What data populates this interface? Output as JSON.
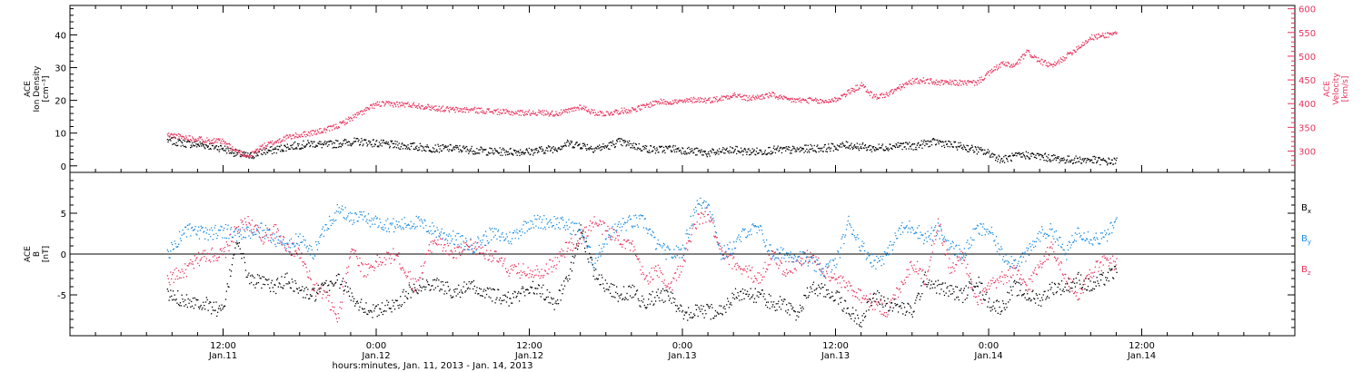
{
  "colors": {
    "black": "#000000",
    "pink": "#e8345e",
    "blue": "#1a8be0"
  },
  "footer": {
    "xlabel": "hours:minutes, Jan. 11, 2013 - Jan. 14, 2013"
  },
  "chart_data": [
    {
      "type": "scatter",
      "panel": "top",
      "ylabel_left": [
        "ACE",
        "Ion Density",
        "[cm⁻³]"
      ],
      "ylabel_right": [
        "ACE",
        "Velocity",
        "[km/s]"
      ],
      "x_range_hours": [
        0,
        96
      ],
      "x_unit": "hours since Jan. 11 00:00",
      "yaxis_left": {
        "range": [
          -2,
          49
        ],
        "ticks": [
          0,
          10,
          20,
          30,
          40
        ],
        "tick_labels": [
          "0",
          "10",
          "20",
          "30",
          "40"
        ]
      },
      "yaxis_right": {
        "range": [
          255,
          607
        ],
        "ticks": [
          300,
          350,
          400,
          450,
          500,
          550,
          600
        ],
        "tick_labels": [
          "300",
          "350",
          "400",
          "450",
          "500",
          "550",
          "600"
        ]
      },
      "series": [
        {
          "axis": "left",
          "color": "#000000",
          "x": [
            7.6,
            9,
            10.5,
            12,
            13,
            14,
            15,
            16,
            17,
            18,
            19,
            20,
            21,
            22,
            23,
            24,
            25.5,
            27,
            28.5,
            30,
            31.5,
            33,
            34.5,
            36,
            37,
            38,
            39,
            40,
            41,
            42,
            43,
            44,
            45,
            46,
            47,
            48,
            49,
            50,
            51,
            52,
            53,
            54,
            55,
            56,
            57,
            58,
            59,
            60,
            61,
            62,
            63,
            64,
            65,
            66,
            67,
            68,
            69,
            70,
            71,
            72,
            73,
            74,
            75,
            76,
            77,
            78,
            79,
            80,
            81,
            82
          ],
          "y": [
            8,
            7,
            6.5,
            5.5,
            4,
            3,
            4.5,
            5,
            6,
            6.5,
            7,
            6.5,
            7,
            7.5,
            7.5,
            7,
            6.5,
            6,
            5.5,
            5.5,
            5,
            4.5,
            4.5,
            4.5,
            5,
            5.5,
            7,
            6.5,
            5.5,
            6,
            7.5,
            6.5,
            5.5,
            5,
            5.5,
            5,
            4.5,
            4,
            4.5,
            5,
            4.5,
            4.5,
            5,
            5,
            5,
            5.5,
            5.5,
            6,
            6.5,
            6,
            5.5,
            6,
            6.5,
            6,
            7,
            7.5,
            6.5,
            6,
            5,
            4,
            2,
            3,
            3.5,
            3,
            2.5,
            2,
            2,
            2,
            1.5,
            1.5
          ]
        },
        {
          "axis": "right",
          "color": "#e8345e",
          "x": [
            7.6,
            9,
            10.5,
            12,
            13,
            14,
            15,
            16,
            17,
            18,
            19,
            20,
            21,
            22,
            23,
            24,
            25.5,
            27,
            28.5,
            30,
            31.5,
            33,
            34.5,
            36,
            37,
            38,
            39,
            40,
            41,
            42,
            43,
            44,
            45,
            46,
            47,
            48,
            49,
            50,
            51,
            52,
            53,
            54,
            55,
            56,
            57,
            58,
            59,
            60,
            61,
            62,
            63,
            64,
            65,
            66,
            67,
            68,
            69,
            70,
            71,
            72,
            73,
            74,
            75,
            76,
            77,
            78,
            79,
            80,
            81,
            82
          ],
          "y": [
            335,
            330,
            325,
            320,
            300,
            290,
            310,
            320,
            330,
            335,
            340,
            345,
            355,
            370,
            385,
            400,
            400,
            398,
            392,
            388,
            388,
            385,
            382,
            382,
            382,
            380,
            385,
            395,
            382,
            380,
            385,
            388,
            395,
            405,
            405,
            405,
            410,
            408,
            412,
            420,
            412,
            415,
            420,
            410,
            408,
            408,
            405,
            410,
            425,
            440,
            415,
            420,
            435,
            448,
            450,
            445,
            445,
            445,
            445,
            465,
            485,
            480,
            510,
            490,
            480,
            500,
            520,
            540,
            545,
            550
          ]
        }
      ]
    },
    {
      "type": "scatter",
      "panel": "bottom",
      "ylabel_left": [
        "ACE",
        "B",
        "[nT]"
      ],
      "x_range_hours": [
        0,
        96
      ],
      "x_unit": "hours since Jan. 11 00:00",
      "yaxis_left": {
        "range": [
          -10,
          10
        ],
        "ticks": [
          -5,
          0,
          5
        ],
        "tick_labels": [
          "-5",
          "0",
          "5"
        ]
      },
      "zero_line": true,
      "legend": {
        "placement": "right",
        "entries": [
          {
            "base": "B",
            "sub": "x",
            "color": "#000000"
          },
          {
            "base": "B",
            "sub": "y",
            "color": "#1a8be0"
          },
          {
            "base": "B",
            "sub": "z",
            "color": "#e8345e"
          }
        ]
      },
      "series": [
        {
          "name": "Bx",
          "color": "#000000",
          "x": [
            7.6,
            9,
            10.5,
            12,
            13,
            14,
            15,
            16,
            17,
            18,
            19,
            20,
            21,
            22,
            23,
            24,
            25.5,
            27,
            28.5,
            30,
            31.5,
            33,
            34.5,
            36,
            37,
            38,
            39,
            40,
            41,
            42,
            43,
            44,
            45,
            46,
            47,
            48,
            49,
            50,
            51,
            52,
            53,
            54,
            55,
            56,
            57,
            58,
            59,
            60,
            61,
            62,
            63,
            64,
            65,
            66,
            67,
            68,
            69,
            70,
            71,
            72,
            73,
            74,
            75,
            76,
            77,
            78,
            79,
            80,
            81,
            82
          ],
          "y": [
            -5,
            -5.5,
            -6,
            -7,
            2,
            -3,
            -3.5,
            -4,
            -3,
            -4.5,
            -5,
            -4,
            -3,
            -5,
            -6.5,
            -7,
            -6,
            -4,
            -3.5,
            -4.5,
            -4,
            -5,
            -5.5,
            -4,
            -4.5,
            -6,
            -3,
            3,
            -2,
            -4,
            -5,
            -4.5,
            -6,
            -5,
            -5,
            -7.5,
            -7,
            -7,
            -7,
            -5,
            -5,
            -5,
            -6,
            -6,
            -7.5,
            -4,
            -4.5,
            -5,
            -7,
            -8,
            -5,
            -6,
            -6.5,
            -7,
            -3,
            -4,
            -4.5,
            -5,
            -3,
            -6,
            -6.5,
            -4,
            -5,
            -5.5,
            -4,
            -4,
            -3,
            -4,
            -3,
            -2
          ]
        },
        {
          "name": "By",
          "color": "#1a8be0",
          "x": [
            7.6,
            9,
            10.5,
            12,
            13,
            14,
            15,
            16,
            17,
            18,
            19,
            20,
            21,
            22,
            23,
            24,
            25.5,
            27,
            28.5,
            30,
            31.5,
            33,
            34.5,
            36,
            37,
            38,
            39,
            40,
            41,
            42,
            43,
            44,
            45,
            46,
            47,
            48,
            49,
            50,
            51,
            52,
            53,
            54,
            55,
            56,
            57,
            58,
            59,
            60,
            61,
            62,
            63,
            64,
            65,
            66,
            67,
            68,
            69,
            70,
            71,
            72,
            73,
            74,
            75,
            76,
            77,
            78,
            79,
            80,
            81,
            82
          ],
          "y": [
            0,
            3,
            2.5,
            3,
            2.5,
            2.5,
            3,
            2,
            1,
            2,
            0,
            3.5,
            5.5,
            4.5,
            4.5,
            4,
            3.5,
            4,
            3,
            2,
            1,
            2.5,
            2,
            4,
            4,
            4,
            3.5,
            3,
            -1,
            2,
            3.5,
            4,
            4,
            1,
            0,
            0.5,
            6,
            6.5,
            0,
            1,
            3,
            3,
            0,
            0,
            0,
            -1,
            -2,
            -1,
            4,
            1,
            -1,
            0,
            3,
            3.5,
            2,
            3,
            1,
            0,
            3,
            3,
            0,
            -1,
            0,
            2.5,
            3,
            0,
            3,
            2,
            2,
            4
          ]
        },
        {
          "name": "Bz",
          "color": "#e8345e",
          "x": [
            7.6,
            9,
            10.5,
            12,
            13,
            14,
            15,
            16,
            17,
            18,
            19,
            20,
            21,
            22,
            23,
            24,
            25.5,
            27,
            28.5,
            30,
            31.5,
            33,
            34.5,
            36,
            37,
            38,
            39,
            40,
            41,
            42,
            43,
            44,
            45,
            46,
            47,
            48,
            49,
            50,
            51,
            52,
            53,
            54,
            55,
            56,
            57,
            58,
            59,
            60,
            61,
            62,
            63,
            64,
            65,
            66,
            67,
            68,
            69,
            70,
            71,
            72,
            73,
            74,
            75,
            76,
            77,
            78,
            79,
            80,
            81,
            82
          ],
          "y": [
            -3,
            -2,
            0,
            0,
            3,
            4,
            2,
            3,
            1,
            0,
            -4,
            -5,
            -8,
            1,
            -2,
            -1,
            0,
            -4,
            2,
            0,
            1,
            0,
            -2,
            -2,
            -2,
            -1,
            1,
            2,
            4,
            3,
            2,
            1,
            -3,
            -2,
            -4,
            -1,
            4,
            5,
            0,
            -1,
            -2,
            -3,
            0,
            -2,
            -1,
            0,
            -2,
            -3,
            -4,
            -5,
            -6,
            -7,
            -4,
            -1,
            -3,
            4,
            -2,
            0,
            -6,
            -4,
            -3,
            -2,
            -4,
            -1,
            1,
            -3,
            -5,
            -2,
            -1,
            -1
          ]
        }
      ]
    }
  ],
  "xaxis": {
    "ticks": [
      {
        "hours": 12,
        "time": "12:00",
        "date": "Jan.11"
      },
      {
        "hours": 24,
        "time": "0:00",
        "date": "Jan.12"
      },
      {
        "hours": 36,
        "time": "12:00",
        "date": "Jan.12"
      },
      {
        "hours": 48,
        "time": "0:00",
        "date": "Jan.13"
      },
      {
        "hours": 60,
        "time": "12:00",
        "date": "Jan.13"
      },
      {
        "hours": 72,
        "time": "0:00",
        "date": "Jan.14"
      },
      {
        "hours": 84,
        "time": "12:00",
        "date": "Jan.14"
      }
    ]
  }
}
